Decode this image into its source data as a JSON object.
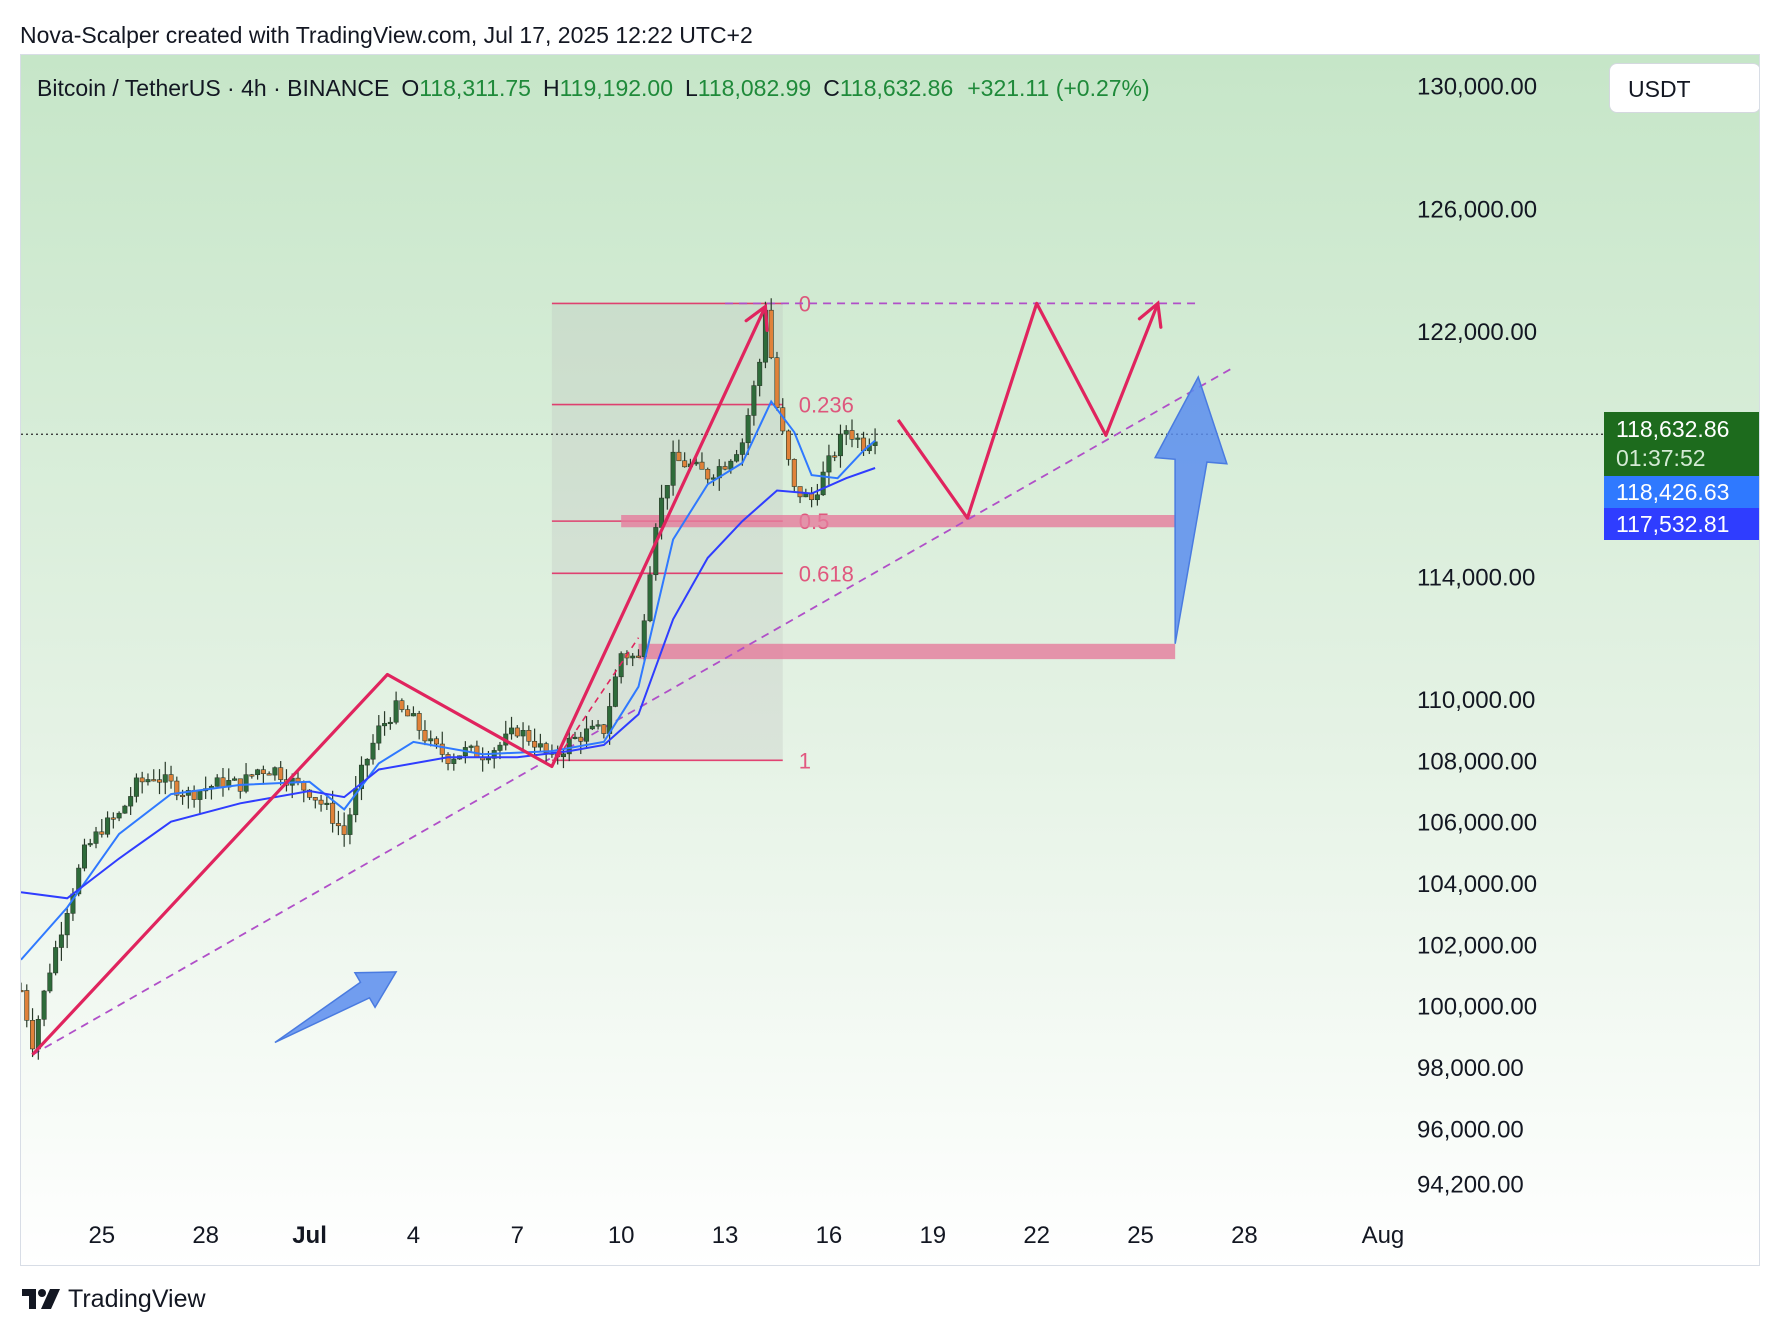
{
  "attribution": "Nova-Scalper created with TradingView.com, Jul 17, 2025 12:22 UTC+2",
  "header": {
    "symbol": "Bitcoin / TetherUS · 4h · BINANCE",
    "open_label": "O",
    "open": "118,311.75",
    "high_label": "H",
    "high": "119,192.00",
    "low_label": "L",
    "low": "118,082.99",
    "close_label": "C",
    "close": "118,632.86",
    "change": "+321.11 (+0.27%)"
  },
  "currency_button": "USDT",
  "price_tags": {
    "last_price": "118,632.86",
    "countdown": "01:37:52",
    "ema_fast": "118,426.63",
    "ema_slow": "117,532.81"
  },
  "footer": {
    "brand": "TradingView"
  },
  "colors": {
    "bull": "#2e6b3a",
    "bear": "#e0823a",
    "ema_fast": "#2f79ff",
    "ema_slow": "#2f3dff",
    "drawing": "#e0245e",
    "trendline": "#b04fc8",
    "zone": "#e57c9c",
    "arrow": "#5b8def",
    "last_price_tag": "#1d6b1d"
  },
  "chart_data": {
    "type": "candlestick",
    "timeframe": "4h",
    "price_axis": {
      "ticks": [
        94200,
        96000,
        98000,
        100000,
        102000,
        104000,
        106000,
        108000,
        110000,
        114000,
        122000,
        126000,
        130000
      ],
      "tick_labels": [
        "94,200.00",
        "96,000.00",
        "98,000.00",
        "100,000.00",
        "102,000.00",
        "104,000.00",
        "106,000.00",
        "108,000.00",
        "110,000.00",
        "114,000.00",
        "122,000.00",
        "126,000.00",
        "130,000.00"
      ],
      "range": [
        93500,
        131000
      ]
    },
    "time_axis": {
      "labels": [
        "25",
        "28",
        "Jul",
        "4",
        "7",
        "10",
        "13",
        "16",
        "19",
        "22",
        "25",
        "28",
        "Aug"
      ],
      "dates": [
        "2025-06-25",
        "2025-06-28",
        "2025-07-01",
        "2025-07-04",
        "2025-07-07",
        "2025-07-10",
        "2025-07-13",
        "2025-07-16",
        "2025-07-19",
        "2025-07-22",
        "2025-07-25",
        "2025-07-28",
        "2025-08-01"
      ],
      "range": [
        "2025-06-22 16:00",
        "2025-08-01 16:00"
      ]
    },
    "price_path": [
      [
        "2025-06-22 16:00",
        100500
      ],
      [
        "2025-06-23 00:00",
        98800
      ],
      [
        "2025-06-23 12:00",
        101200
      ],
      [
        "2025-06-24 00:00",
        103200
      ],
      [
        "2025-06-24 12:00",
        105000
      ],
      [
        "2025-06-25 00:00",
        105800
      ],
      [
        "2025-06-25 12:00",
        106200
      ],
      [
        "2025-06-26 00:00",
        107200
      ],
      [
        "2025-06-26 12:00",
        107500
      ],
      [
        "2025-06-27 00:00",
        107200
      ],
      [
        "2025-06-27 12:00",
        106900
      ],
      [
        "2025-06-28 00:00",
        107100
      ],
      [
        "2025-06-28 12:00",
        107300
      ],
      [
        "2025-06-29 00:00",
        107200
      ],
      [
        "2025-06-29 12:00",
        107700
      ],
      [
        "2025-06-30 00:00",
        107700
      ],
      [
        "2025-06-30 12:00",
        107300
      ],
      [
        "2025-07-01 00:00",
        107000
      ],
      [
        "2025-07-01 12:00",
        106400
      ],
      [
        "2025-07-02 00:00",
        105600
      ],
      [
        "2025-07-02 12:00",
        107600
      ],
      [
        "2025-07-03 00:00",
        109000
      ],
      [
        "2025-07-03 12:00",
        109700
      ],
      [
        "2025-07-04 00:00",
        109300
      ],
      [
        "2025-07-04 12:00",
        108500
      ],
      [
        "2025-07-05 00:00",
        108100
      ],
      [
        "2025-07-05 12:00",
        108300
      ],
      [
        "2025-07-06 00:00",
        108200
      ],
      [
        "2025-07-06 12:00",
        108500
      ],
      [
        "2025-07-07 00:00",
        109000
      ],
      [
        "2025-07-07 12:00",
        108600
      ],
      [
        "2025-07-08 00:00",
        108000
      ],
      [
        "2025-07-08 12:00",
        108600
      ],
      [
        "2025-07-09 00:00",
        108900
      ],
      [
        "2025-07-09 12:00",
        109000
      ],
      [
        "2025-07-10 00:00",
        111500
      ],
      [
        "2025-07-10 12:00",
        111300
      ],
      [
        "2025-07-11 00:00",
        115800
      ],
      [
        "2025-07-11 12:00",
        117800
      ],
      [
        "2025-07-12 00:00",
        117600
      ],
      [
        "2025-07-12 12:00",
        117300
      ],
      [
        "2025-07-13 00:00",
        117700
      ],
      [
        "2025-07-13 12:00",
        118400
      ],
      [
        "2025-07-14 00:00",
        121000
      ],
      [
        "2025-07-14 04:00",
        122800
      ],
      [
        "2025-07-14 12:00",
        119500
      ],
      [
        "2025-07-15 00:00",
        116800
      ],
      [
        "2025-07-15 12:00",
        116500
      ],
      [
        "2025-07-16 00:00",
        117700
      ],
      [
        "2025-07-16 12:00",
        118800
      ],
      [
        "2025-07-17 00:00",
        118300
      ],
      [
        "2025-07-17 08:00",
        118633
      ]
    ],
    "ema_fast": [
      [
        "2025-06-22 16:00",
        101500
      ],
      [
        "2025-06-24 00:00",
        103200
      ],
      [
        "2025-06-25 12:00",
        105600
      ],
      [
        "2025-06-27 00:00",
        106900
      ],
      [
        "2025-06-29 00:00",
        107200
      ],
      [
        "2025-07-01 00:00",
        107300
      ],
      [
        "2025-07-02 00:00",
        106400
      ],
      [
        "2025-07-03 00:00",
        107900
      ],
      [
        "2025-07-04 00:00",
        108600
      ],
      [
        "2025-07-06 00:00",
        108200
      ],
      [
        "2025-07-08 00:00",
        108300
      ],
      [
        "2025-07-09 12:00",
        108600
      ],
      [
        "2025-07-10 12:00",
        110400
      ],
      [
        "2025-07-11 12:00",
        115200
      ],
      [
        "2025-07-12 12:00",
        117000
      ],
      [
        "2025-07-13 12:00",
        117700
      ],
      [
        "2025-07-14 08:00",
        119700
      ],
      [
        "2025-07-15 00:00",
        118700
      ],
      [
        "2025-07-15 12:00",
        117300
      ],
      [
        "2025-07-16 06:00",
        117200
      ],
      [
        "2025-07-17 00:00",
        118100
      ],
      [
        "2025-07-17 08:00",
        118427
      ]
    ],
    "ema_slow": [
      [
        "2025-06-22 16:00",
        103700
      ],
      [
        "2025-06-24 00:00",
        103500
      ],
      [
        "2025-06-25 12:00",
        104800
      ],
      [
        "2025-06-27 00:00",
        106000
      ],
      [
        "2025-06-29 00:00",
        106600
      ],
      [
        "2025-07-01 00:00",
        107000
      ],
      [
        "2025-07-02 00:00",
        106800
      ],
      [
        "2025-07-03 00:00",
        107700
      ],
      [
        "2025-07-05 00:00",
        108100
      ],
      [
        "2025-07-07 00:00",
        108100
      ],
      [
        "2025-07-08 12:00",
        108300
      ],
      [
        "2025-07-09 12:00",
        108500
      ],
      [
        "2025-07-10 12:00",
        109500
      ],
      [
        "2025-07-11 12:00",
        112600
      ],
      [
        "2025-07-12 12:00",
        114600
      ],
      [
        "2025-07-13 12:00",
        115800
      ],
      [
        "2025-07-14 12:00",
        116800
      ],
      [
        "2025-07-15 12:00",
        116700
      ],
      [
        "2025-07-16 12:00",
        117200
      ],
      [
        "2025-07-17 08:00",
        117533
      ]
    ],
    "last_price": 118632.86,
    "fibonacci": {
      "from": "2025-07-08 00:00",
      "to": "2025-07-14 16:00",
      "levels": [
        {
          "label": "0",
          "price": 122900
        },
        {
          "label": "0.236",
          "price": 119600
        },
        {
          "label": "0.5",
          "price": 115800
        },
        {
          "label": "0.618",
          "price": 114100
        },
        {
          "label": "1",
          "price": 108000
        }
      ]
    },
    "support_zones": [
      {
        "from": "2025-07-10 00:00",
        "to": "2025-07-26 00:00",
        "low": 115600,
        "high": 116000
      },
      {
        "from": "2025-07-10 12:00",
        "to": "2025-07-26 00:00",
        "low": 111300,
        "high": 111800
      }
    ],
    "zigzag": [
      [
        "2025-06-23 00:00",
        98400
      ],
      [
        "2025-07-03 06:00",
        110800
      ],
      [
        "2025-07-08 00:00",
        107800
      ],
      [
        "2025-07-14 04:00",
        122800
      ]
    ],
    "projection_path": [
      [
        "2025-07-18 00:00",
        119100
      ],
      [
        "2025-07-20 00:00",
        115900
      ],
      [
        "2025-07-22 00:00",
        122900
      ],
      [
        "2025-07-24 00:00",
        118600
      ],
      [
        "2025-07-25 12:00",
        122900
      ]
    ],
    "trendline": [
      [
        "2025-06-23 00:00",
        98400
      ],
      [
        "2025-07-27 16:00",
        120800
      ]
    ],
    "top_line": [
      [
        "2025-07-13 00:00",
        122900
      ],
      [
        "2025-07-26 16:00",
        122900
      ]
    ]
  }
}
